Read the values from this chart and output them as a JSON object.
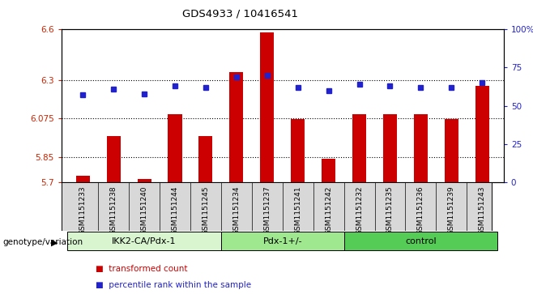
{
  "title": "GDS4933 / 10416541",
  "samples": [
    "GSM1151233",
    "GSM1151238",
    "GSM1151240",
    "GSM1151244",
    "GSM1151245",
    "GSM1151234",
    "GSM1151237",
    "GSM1151241",
    "GSM1151242",
    "GSM1151232",
    "GSM1151235",
    "GSM1151236",
    "GSM1151239",
    "GSM1151243"
  ],
  "transformed_counts": [
    5.74,
    5.97,
    5.72,
    6.1,
    5.97,
    6.35,
    6.58,
    6.07,
    5.84,
    6.1,
    6.1,
    6.1,
    6.07,
    6.27
  ],
  "percentile_ranks": [
    57,
    61,
    58,
    63,
    62,
    69,
    70,
    62,
    60,
    64,
    63,
    62,
    62,
    65
  ],
  "groups": [
    {
      "label": "IKK2-CA/Pdx-1",
      "start": 0,
      "end": 5,
      "color": "#d8f5d0"
    },
    {
      "label": "Pdx-1+/-",
      "start": 5,
      "end": 9,
      "color": "#a0e890"
    },
    {
      "label": "control",
      "start": 9,
      "end": 14,
      "color": "#55cc55"
    }
  ],
  "bar_color": "#cc0000",
  "dot_color": "#2222cc",
  "ylim_left": [
    5.7,
    6.6
  ],
  "ylim_right": [
    0,
    100
  ],
  "yticks_left": [
    5.7,
    5.85,
    6.075,
    6.3,
    6.6
  ],
  "ytick_labels_left": [
    "5.7",
    "5.85",
    "6.075",
    "6.3",
    "6.6"
  ],
  "yticks_right": [
    0,
    25,
    50,
    75,
    100
  ],
  "ytick_labels_right": [
    "0",
    "25",
    "50",
    "75",
    "100%"
  ],
  "hlines": [
    5.85,
    6.075,
    6.3
  ],
  "bar_width": 0.45,
  "bg_color": "#d8d8d8",
  "plot_bg": "#ffffff"
}
